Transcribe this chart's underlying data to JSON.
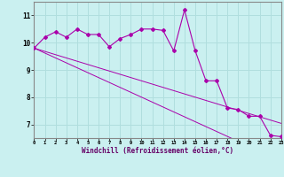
{
  "x": [
    0,
    1,
    2,
    3,
    4,
    5,
    6,
    7,
    8,
    9,
    10,
    11,
    12,
    13,
    14,
    15,
    16,
    17,
    18,
    19,
    20,
    21,
    22,
    23
  ],
  "y_main": [
    9.8,
    10.2,
    10.4,
    10.2,
    10.5,
    10.3,
    10.3,
    9.85,
    10.15,
    10.3,
    10.5,
    10.5,
    10.45,
    9.7,
    11.2,
    9.7,
    8.6,
    8.6,
    7.6,
    7.55,
    7.3,
    7.3,
    6.6,
    6.55
  ],
  "y_lin1": [
    9.8,
    9.62,
    9.44,
    9.26,
    9.08,
    8.9,
    8.72,
    8.54,
    8.36,
    8.18,
    8.0,
    7.82,
    7.64,
    7.46,
    7.28,
    7.1,
    6.92,
    6.74,
    6.56,
    6.38,
    6.2,
    6.02,
    5.84,
    5.66
  ],
  "y_lin2": [
    9.8,
    9.68,
    9.56,
    9.44,
    9.32,
    9.2,
    9.08,
    8.96,
    8.84,
    8.72,
    8.6,
    8.48,
    8.36,
    8.24,
    8.12,
    8.0,
    7.88,
    7.76,
    7.64,
    7.52,
    7.4,
    7.28,
    7.16,
    7.04
  ],
  "line_color": "#aa00aa",
  "bg_color": "#caf0f0",
  "grid_color": "#b0dede",
  "ylabel_values": [
    7,
    8,
    9,
    10,
    11
  ],
  "xlabel": "Windchill (Refroidissement éolien,°C)",
  "ylim": [
    6.5,
    11.5
  ],
  "xlim": [
    0,
    23
  ]
}
